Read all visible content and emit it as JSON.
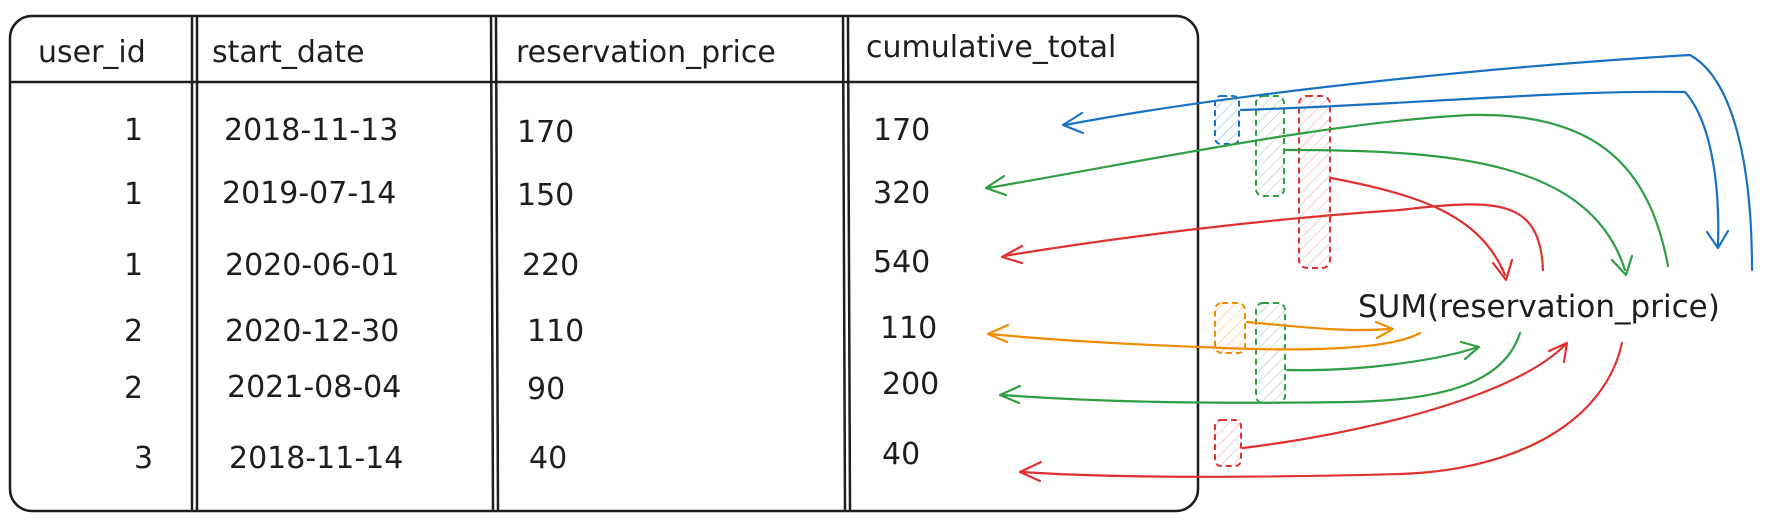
{
  "table": {
    "columns": [
      "user_id",
      "start_date",
      "reservation_price",
      "cumulative_total"
    ],
    "rows": [
      [
        "1",
        "2018-11-13",
        "170",
        "170"
      ],
      [
        "1",
        "2019-07-14",
        "150",
        "320"
      ],
      [
        "1",
        "2020-06-01",
        "220",
        "540"
      ],
      [
        "2",
        "2020-12-30",
        "110",
        "110"
      ],
      [
        "2",
        "2021-08-04",
        "90",
        "200"
      ],
      [
        "3",
        "2018-11-14",
        "40",
        "40"
      ]
    ]
  },
  "formula": "SUM(reservation_price)",
  "colors": {
    "ink": "#1e1e1e",
    "blue": "#1971c2",
    "green": "#2f9e44",
    "red": "#e03131",
    "orange": "#f08c00"
  }
}
